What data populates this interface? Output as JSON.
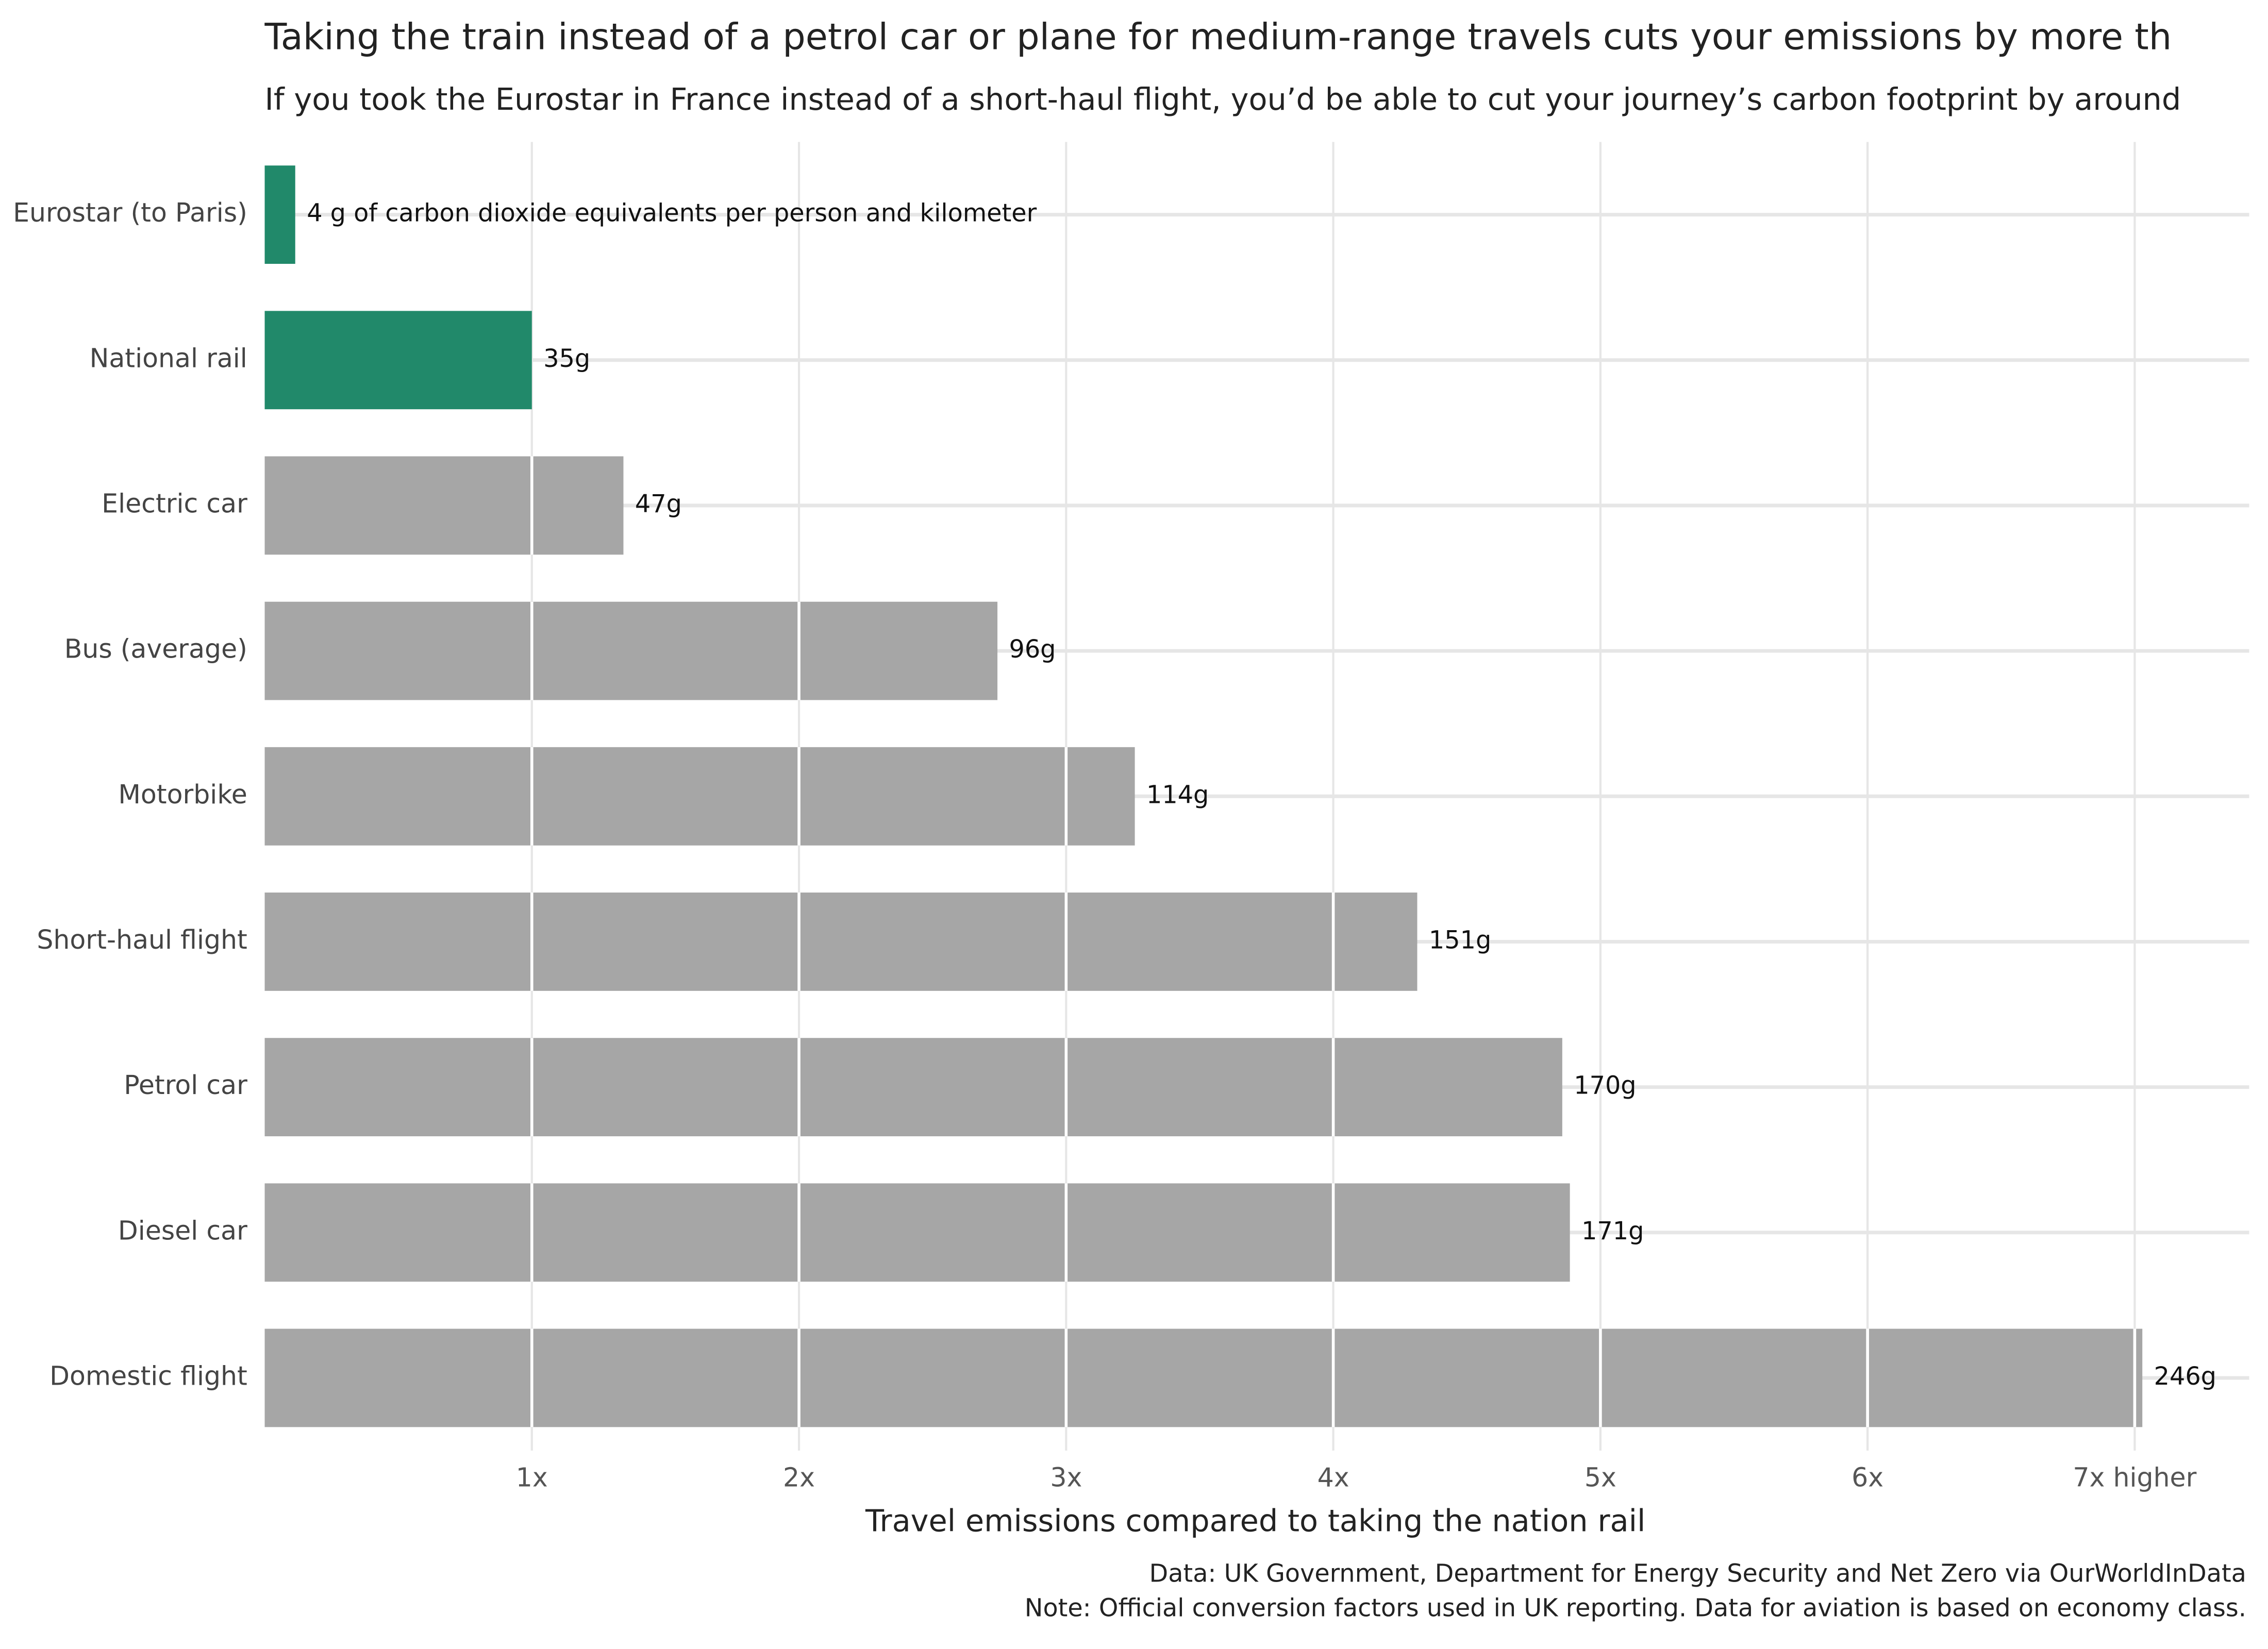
{
  "chart_data": {
    "type": "bar",
    "orientation": "horizontal",
    "title": "Taking the train instead of a petrol car or plane for medium-range travels cuts your emissions by more th",
    "subtitle": "If you took the Eurostar in France instead of a short-haul flight, you’d be able to cut your journey’s carbon footprint by around",
    "categories": [
      "Eurostar (to Paris)",
      "National rail",
      "Electric car",
      "Bus (average)",
      "Motorbike",
      "Short-haul flight",
      "Petrol car",
      "Diesel car",
      "Domestic flight"
    ],
    "values": [
      4,
      35,
      47,
      96,
      114,
      151,
      170,
      171,
      246
    ],
    "value_labels": [
      "4 g of carbon dioxide equivalents per person and kilometer",
      "35g",
      "47g",
      "96g",
      "114g",
      "151g",
      "170g",
      "171g",
      "246g"
    ],
    "colors": [
      "#21896a",
      "#21896a",
      "#a6a6a6",
      "#a6a6a6",
      "#a6a6a6",
      "#a6a6a6",
      "#a6a6a6",
      "#a6a6a6",
      "#a6a6a6"
    ],
    "xlim": [
      0,
      260
    ],
    "xticks": [
      {
        "value": 35,
        "label": "1x"
      },
      {
        "value": 70,
        "label": "2x"
      },
      {
        "value": 105,
        "label": "3x"
      },
      {
        "value": 140,
        "label": "4x"
      },
      {
        "value": 175,
        "label": "5x"
      },
      {
        "value": 210,
        "label": "6x"
      },
      {
        "value": 245,
        "label": "7x higher"
      }
    ],
    "xlabel": "Travel emissions compared to taking the nation rail",
    "caption": [
      "Data: UK Government, Department for Energy Security and Net Zero via OurWorldInData",
      "Note: Official conversion factors used in UK reporting. Data for aviation is based on economy class."
    ],
    "grid": true
  }
}
